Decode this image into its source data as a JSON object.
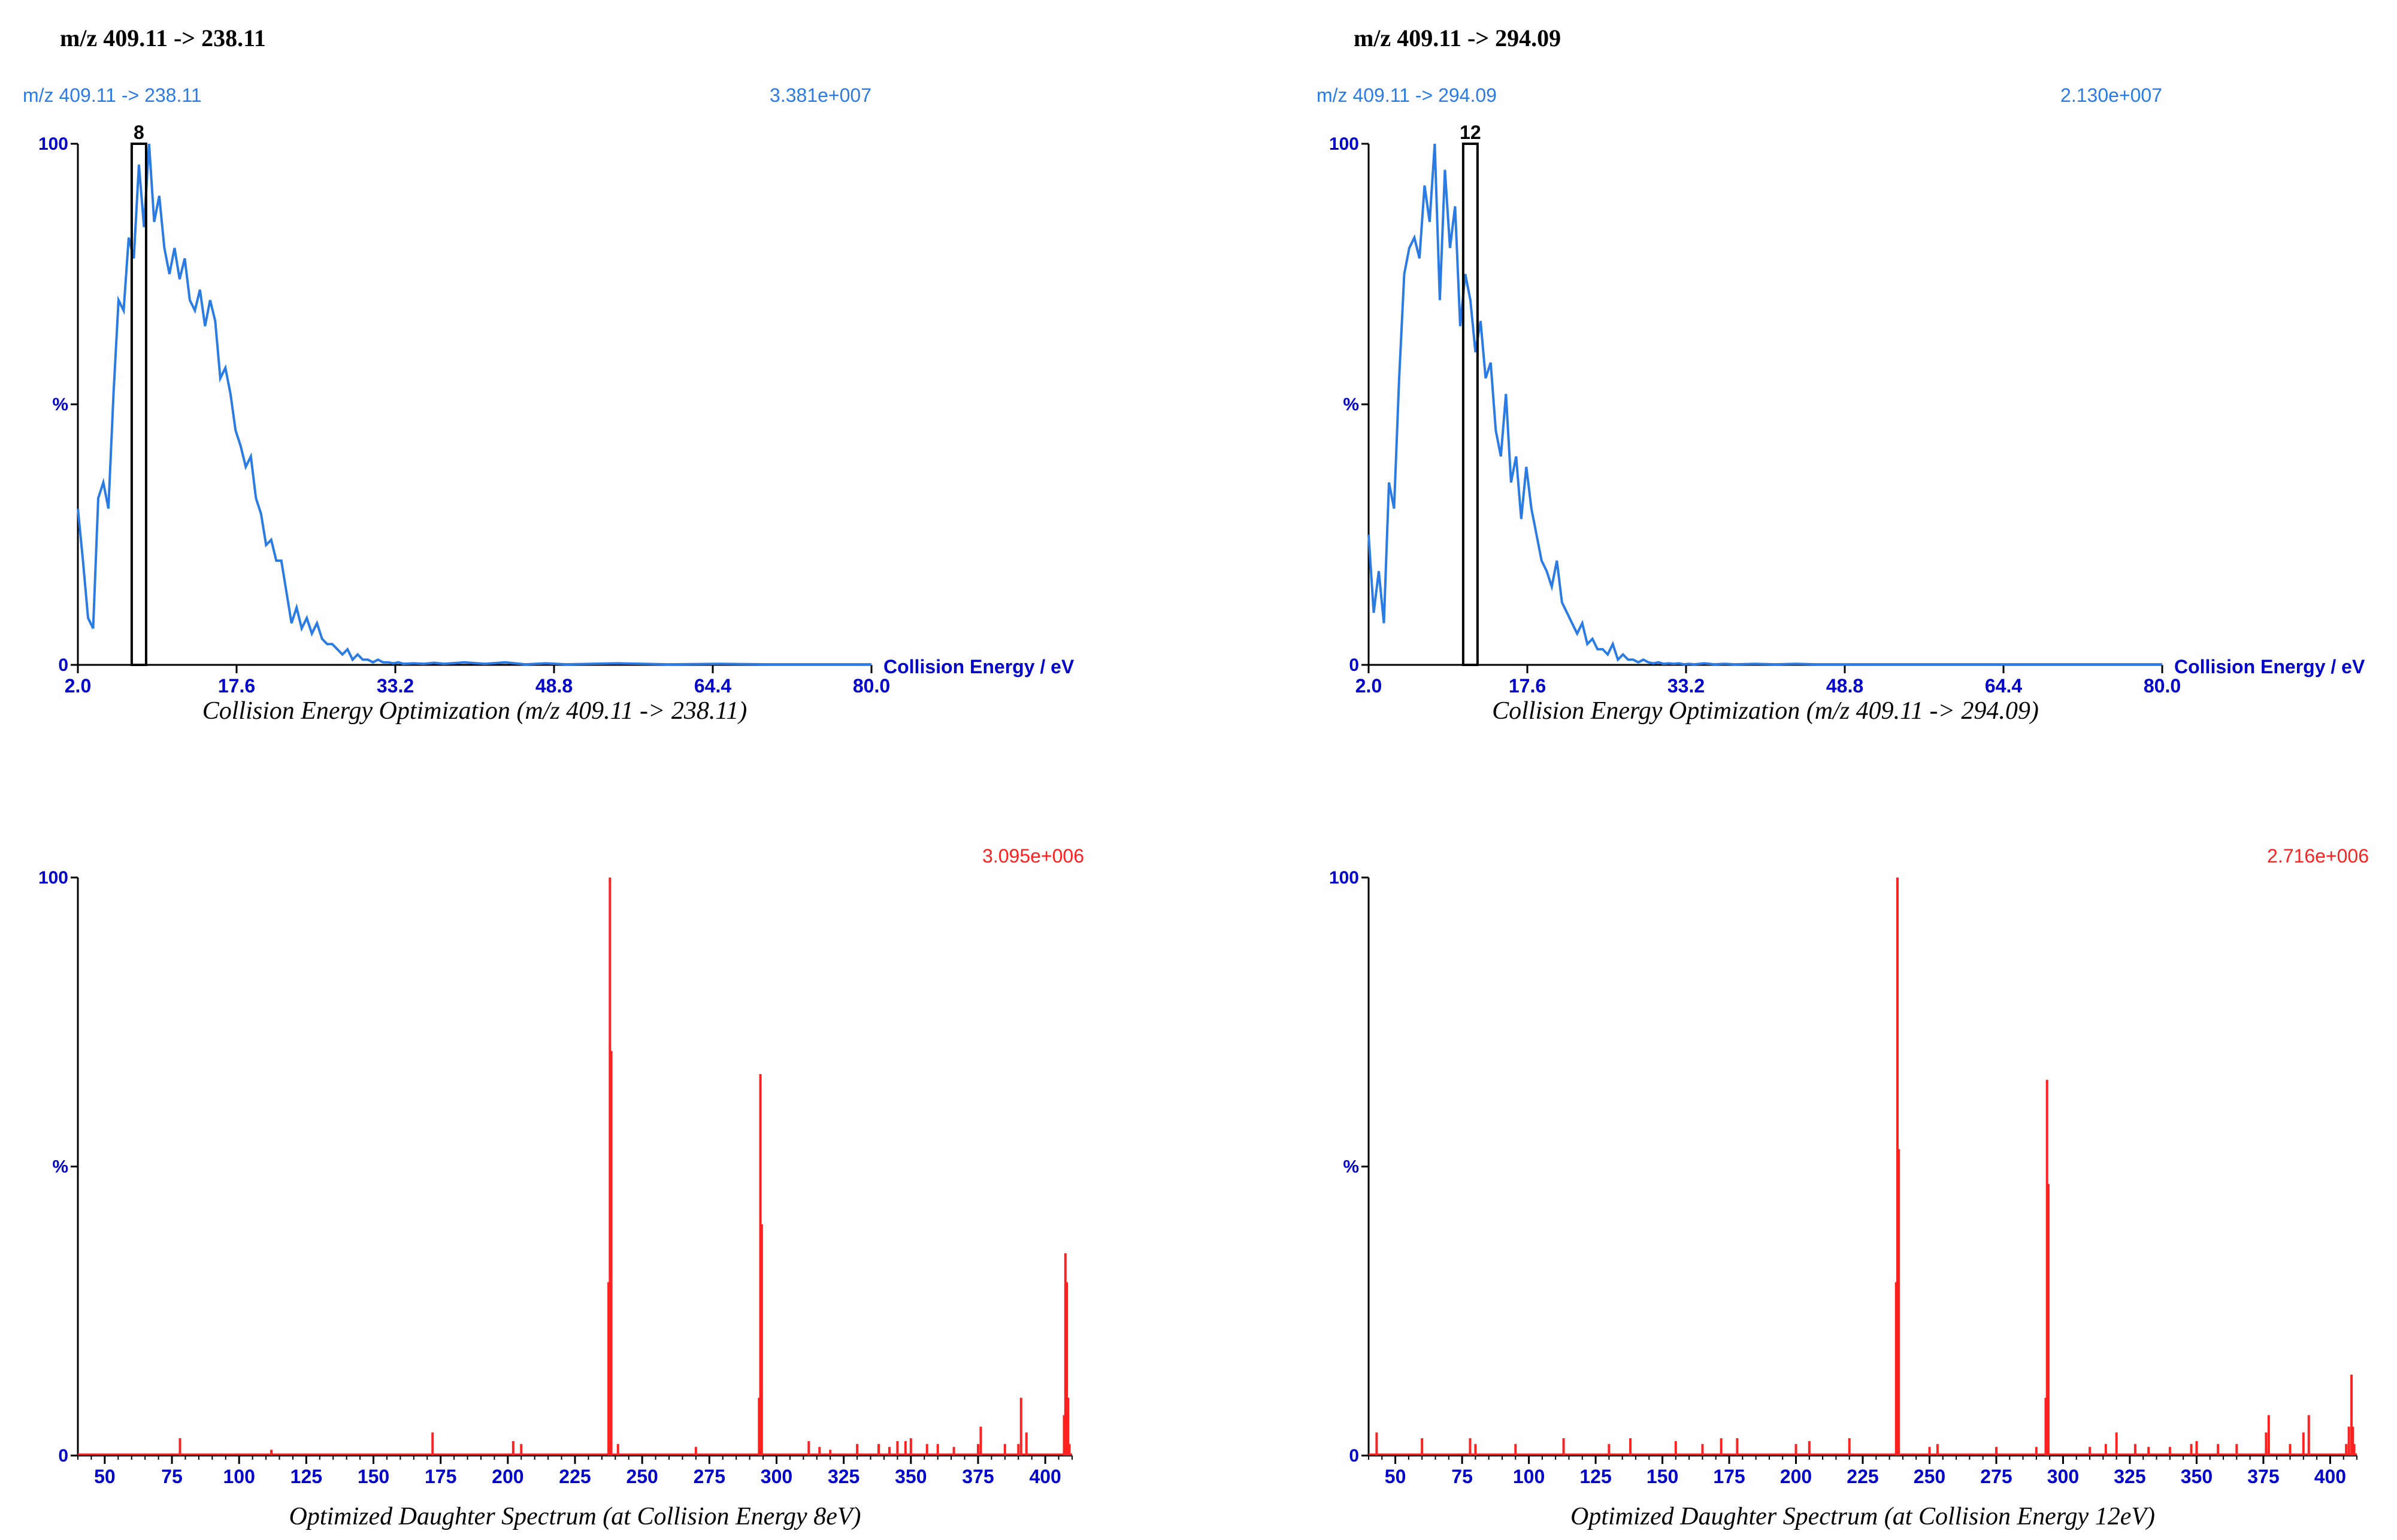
{
  "chart_data": [
    {
      "type": "line",
      "title": "m/z 409.11 -> 238.11",
      "trace_label": "m/z 409.11 -> 238.11",
      "intensity": "3.381e+007",
      "marker": {
        "x": 8,
        "label": "8"
      },
      "y_ticks": [
        "100",
        "%",
        "0"
      ],
      "xlim": [
        2.0,
        80.0
      ],
      "ylim": [
        0,
        100
      ],
      "x_ticks": [
        "2.0",
        "17.6",
        "33.2",
        "48.8",
        "64.4",
        "80.0"
      ],
      "xlabel": "Collision Energy / eV",
      "caption": "Collision Energy Optimization (m/z 409.11 -> 238.11)",
      "series": [
        {
          "x": [
            2,
            2.5,
            3,
            3.5,
            4,
            4.5,
            5,
            5.5,
            6,
            6.5,
            7,
            7.5,
            8,
            8.5,
            9,
            9.5,
            10,
            10.5,
            11,
            11.5,
            12,
            12.5,
            13,
            13.5,
            14,
            14.5,
            15,
            15.5,
            16,
            16.5,
            17,
            17.5,
            18,
            18.5,
            19,
            19.5,
            20,
            20.5,
            21,
            21.5,
            22,
            22.5,
            23,
            23.5,
            24,
            24.5,
            25,
            25.5,
            26,
            26.5,
            27,
            27.5,
            28,
            28.5,
            29,
            29.5,
            30,
            30.5,
            31,
            31.5,
            32,
            32.5,
            33,
            33.5,
            34,
            35,
            36,
            37,
            38,
            40,
            42,
            44,
            46,
            48,
            50,
            55,
            60,
            65,
            70,
            75,
            80
          ],
          "y": [
            30,
            20,
            9,
            7,
            32,
            35,
            30,
            52,
            70,
            68,
            82,
            78,
            96,
            84,
            100,
            85,
            90,
            80,
            75,
            80,
            74,
            78,
            70,
            68,
            72,
            65,
            70,
            66,
            55,
            57,
            52,
            45,
            42,
            38,
            40,
            32,
            29,
            23,
            24,
            20,
            20,
            14,
            8,
            11,
            7,
            9,
            6,
            8,
            5,
            4,
            4,
            3,
            2,
            3,
            1,
            2,
            1,
            1,
            0.5,
            1,
            0.5,
            0.5,
            0.3,
            0.5,
            0.2,
            0.3,
            0.2,
            0.4,
            0.2,
            0.5,
            0.2,
            0.5,
            0.1,
            0.3,
            0.1,
            0.3,
            0.1,
            0.2,
            0.1,
            0.1,
            0.1
          ]
        }
      ]
    },
    {
      "type": "line",
      "title": "m/z 409.11 -> 294.09",
      "trace_label": "m/z 409.11 -> 294.09",
      "intensity": "2.130e+007",
      "marker": {
        "x": 12,
        "label": "12"
      },
      "y_ticks": [
        "100",
        "%",
        "0"
      ],
      "xlim": [
        2.0,
        80.0
      ],
      "ylim": [
        0,
        100
      ],
      "x_ticks": [
        "2.0",
        "17.6",
        "33.2",
        "48.8",
        "64.4",
        "80.0"
      ],
      "xlabel": "Collision Energy / eV",
      "caption": "Collision Energy Optimization (m/z 409.11 -> 294.09)",
      "series": [
        {
          "x": [
            2,
            2.5,
            3,
            3.5,
            4,
            4.5,
            5,
            5.5,
            6,
            6.5,
            7,
            7.5,
            8,
            8.5,
            9,
            9.5,
            10,
            10.5,
            11,
            11.5,
            12,
            12.5,
            13,
            13.5,
            14,
            14.5,
            15,
            15.5,
            16,
            16.5,
            17,
            17.5,
            18,
            18.5,
            19,
            19.5,
            20,
            20.5,
            21,
            21.5,
            22,
            22.5,
            23,
            23.5,
            24,
            24.5,
            25,
            25.5,
            26,
            26.5,
            27,
            27.5,
            28,
            28.5,
            29,
            29.5,
            30,
            30.5,
            31,
            31.5,
            32,
            32.5,
            33,
            33.5,
            34,
            35,
            36,
            37,
            38,
            40,
            42,
            44,
            46,
            48,
            50,
            55,
            60,
            65,
            70,
            75,
            80
          ],
          "y": [
            25,
            10,
            18,
            8,
            35,
            30,
            55,
            75,
            80,
            82,
            78,
            92,
            85,
            100,
            70,
            95,
            80,
            88,
            65,
            75,
            70,
            60,
            66,
            55,
            58,
            45,
            40,
            52,
            35,
            40,
            28,
            38,
            30,
            25,
            20,
            18,
            15,
            20,
            12,
            10,
            8,
            6,
            8,
            4,
            5,
            3,
            3,
            2,
            4,
            1,
            2,
            1,
            1,
            0.5,
            1,
            0.5,
            0.3,
            0.5,
            0.2,
            0.3,
            0.2,
            0.3,
            0.1,
            0.2,
            0.1,
            0.3,
            0.1,
            0.2,
            0.1,
            0.2,
            0.1,
            0.2,
            0.1,
            0.1,
            0.1,
            0.1,
            0.1,
            0.1,
            0.1,
            0.1,
            0.1
          ]
        }
      ]
    },
    {
      "type": "bar",
      "intensity": "3.095e+006",
      "y_ticks": [
        "100",
        "%",
        "0"
      ],
      "xlim": [
        40,
        410
      ],
      "ylim": [
        0,
        100
      ],
      "x_ticks": [
        "50",
        "75",
        "100",
        "125",
        "150",
        "175",
        "200",
        "225",
        "250",
        "275",
        "300",
        "325",
        "350",
        "375",
        "400"
      ],
      "caption": "Optimized Daughter Spectrum (at Collision Energy 8eV)",
      "series": [
        {
          "x": [
            78,
            112,
            172,
            202,
            205,
            237.5,
            238,
            238.5,
            241,
            270,
            293.5,
            294,
            294.5,
            312,
            316,
            320,
            330,
            338,
            342,
            345,
            348,
            350,
            356,
            360,
            366,
            375,
            376,
            385,
            390,
            391,
            393,
            407,
            407.5,
            408,
            408.5,
            409
          ],
          "values": [
            3,
            1,
            4,
            2.5,
            2,
            30,
            100,
            70,
            2,
            1.5,
            10,
            66,
            40,
            2.5,
            1.5,
            1,
            2,
            2,
            1.5,
            2.5,
            2.5,
            3,
            2,
            2,
            1.5,
            2,
            5,
            2,
            2,
            10,
            4,
            7,
            35,
            30,
            10,
            2
          ]
        }
      ]
    },
    {
      "type": "bar",
      "intensity": "2.716e+006",
      "y_ticks": [
        "100",
        "%",
        "0"
      ],
      "xlim": [
        40,
        410
      ],
      "ylim": [
        0,
        100
      ],
      "x_ticks": [
        "50",
        "75",
        "100",
        "125",
        "150",
        "175",
        "200",
        "225",
        "250",
        "275",
        "300",
        "325",
        "350",
        "375",
        "400"
      ],
      "caption": "Optimized Daughter Spectrum (at Collision Energy 12eV)",
      "series": [
        {
          "x": [
            43,
            60,
            78,
            80,
            95,
            113,
            130,
            138,
            155,
            165,
            172,
            178,
            200,
            205,
            220,
            237.5,
            238,
            238.5,
            250,
            253,
            275,
            290,
            293.5,
            294,
            294.5,
            310,
            316,
            320,
            327,
            332,
            340,
            348,
            350,
            358,
            365,
            376,
            377,
            385,
            390,
            392,
            406,
            407,
            408,
            408.5,
            409
          ],
          "values": [
            4,
            3,
            3,
            2,
            2,
            3,
            2,
            3,
            2.5,
            2,
            3,
            3,
            2,
            2.5,
            3,
            30,
            100,
            53,
            1.5,
            2,
            1.5,
            1.5,
            10,
            65,
            47,
            1.5,
            2,
            4,
            2,
            1.5,
            1.5,
            2,
            2.5,
            2,
            2,
            4,
            7,
            2,
            4,
            7,
            2,
            5,
            14,
            5,
            2
          ]
        }
      ]
    }
  ]
}
